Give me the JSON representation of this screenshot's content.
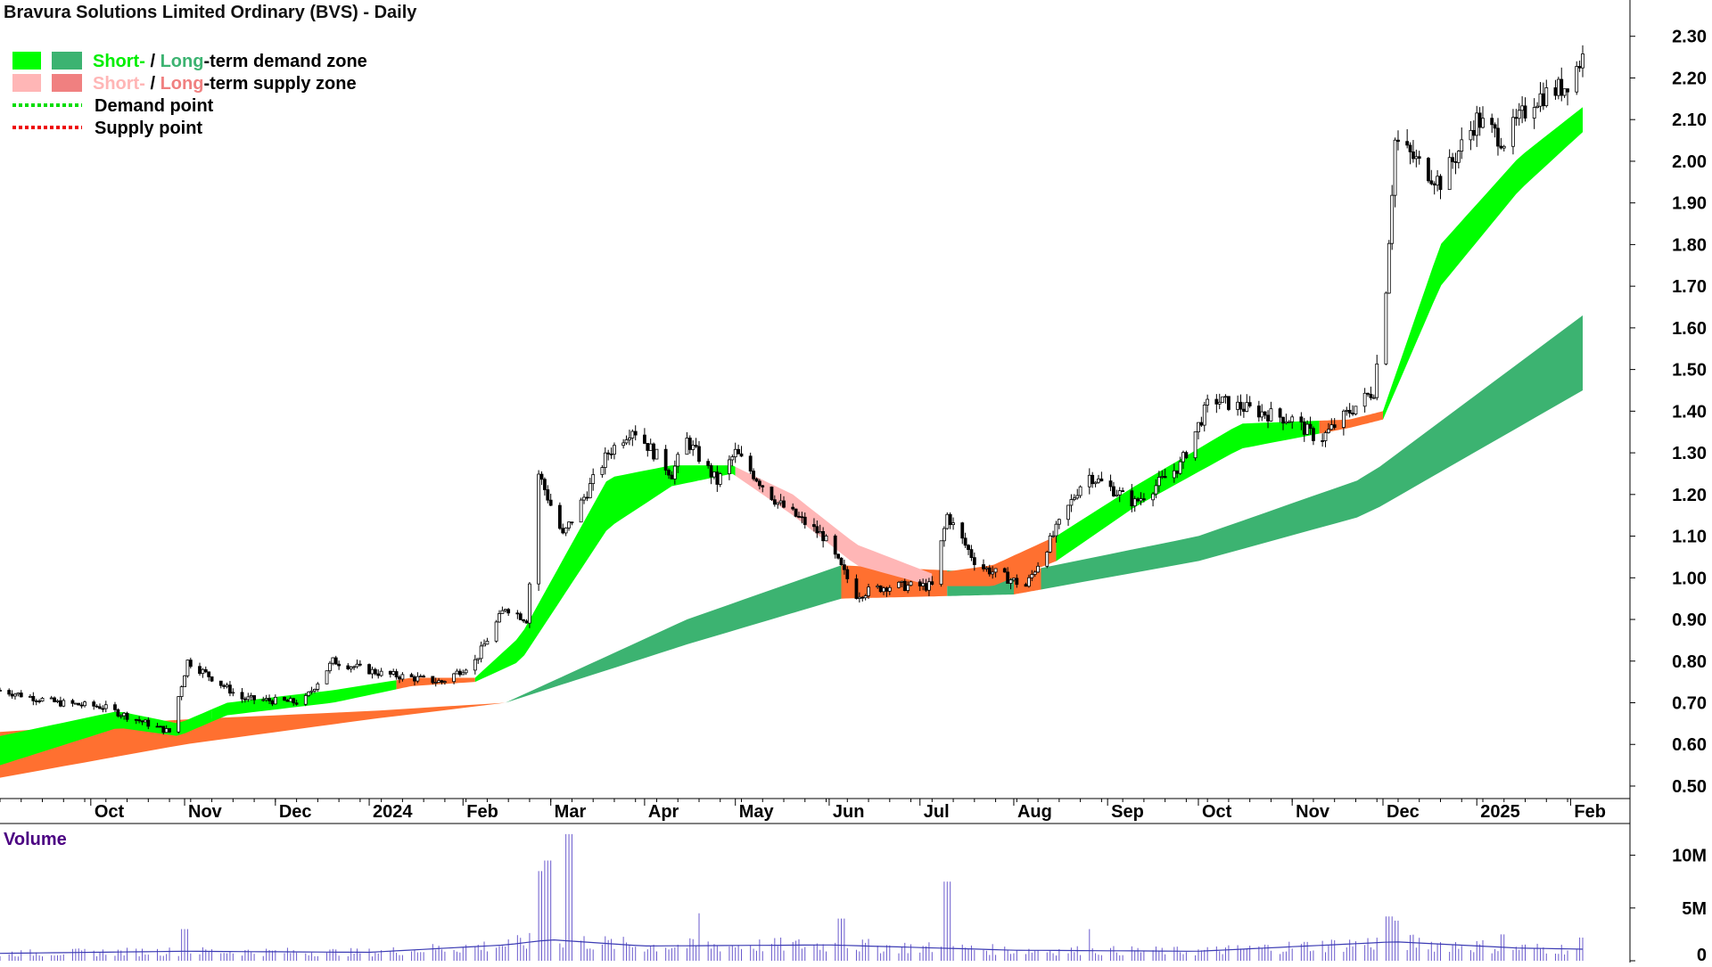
{
  "chart_data": [
    {
      "type": "candlestick",
      "title": "Bravura Solutions Limited Ordinary (BVS) - Daily",
      "legend": {
        "placement": "top-left",
        "items": [
          {
            "kind": "zone",
            "parts": [
              {
                "text": "Short-",
                "color": "#00ee00"
              },
              {
                "text": " / ",
                "color": "#000000"
              },
              {
                "text": "Long",
                "color": "#3cb371"
              },
              {
                "text": "-term demand zone",
                "color": "#000000"
              }
            ],
            "swatches": [
              "#00ff00",
              "#3cb371"
            ]
          },
          {
            "kind": "zone",
            "parts": [
              {
                "text": "Short-",
                "color": "#ffb6b6"
              },
              {
                "text": " / ",
                "color": "#000000"
              },
              {
                "text": "Long",
                "color": "#f08080"
              },
              {
                "text": "-term supply zone",
                "color": "#000000"
              }
            ],
            "swatches": [
              "#ffb6b6",
              "#f08080"
            ]
          },
          {
            "kind": "point",
            "text": "Demand point",
            "color": "#00dd00"
          },
          {
            "kind": "point",
            "text": "Supply point",
            "color": "#ee0000"
          }
        ]
      },
      "y_axis": {
        "side": "right",
        "ticks": [
          "2.30",
          "2.20",
          "2.10",
          "2.00",
          "1.90",
          "1.80",
          "1.70",
          "1.60",
          "1.50",
          "1.40",
          "1.30",
          "1.20",
          "1.10",
          "1.00",
          "0.90",
          "0.80",
          "0.70",
          "0.60",
          "0.50"
        ],
        "ylim": [
          0.47,
          2.37
        ]
      },
      "x_axis": {
        "ticks": [
          "Oct",
          "Nov",
          "Dec",
          "2024",
          "Feb",
          "Mar",
          "Apr",
          "May",
          "Jun",
          "Jul",
          "Aug",
          "Sep",
          "Oct",
          "Nov",
          "Dec",
          "2025",
          "Feb"
        ]
      },
      "price_path": [
        {
          "date": "2023-09-01",
          "close": 0.73
        },
        {
          "date": "2023-09-20",
          "close": 0.7
        },
        {
          "date": "2023-10-05",
          "close": 0.69
        },
        {
          "date": "2023-10-27",
          "close": 0.63
        },
        {
          "date": "2023-11-02",
          "close": 0.8
        },
        {
          "date": "2023-11-20",
          "close": 0.71
        },
        {
          "date": "2023-12-10",
          "close": 0.7
        },
        {
          "date": "2023-12-20",
          "close": 0.8
        },
        {
          "date": "2024-01-05",
          "close": 0.77
        },
        {
          "date": "2024-01-25",
          "close": 0.75
        },
        {
          "date": "2024-02-05",
          "close": 0.8
        },
        {
          "date": "2024-02-15",
          "close": 0.93
        },
        {
          "date": "2024-02-22",
          "close": 0.9
        },
        {
          "date": "2024-02-26",
          "close": 1.25
        },
        {
          "date": "2024-03-05",
          "close": 1.1
        },
        {
          "date": "2024-03-20",
          "close": 1.3
        },
        {
          "date": "2024-03-28",
          "close": 1.36
        },
        {
          "date": "2024-04-10",
          "close": 1.25
        },
        {
          "date": "2024-04-15",
          "close": 1.33
        },
        {
          "date": "2024-04-25",
          "close": 1.23
        },
        {
          "date": "2024-05-01",
          "close": 1.3
        },
        {
          "date": "2024-05-15",
          "close": 1.18
        },
        {
          "date": "2024-05-30",
          "close": 1.1
        },
        {
          "date": "2024-06-10",
          "close": 0.96
        },
        {
          "date": "2024-06-20",
          "close": 0.98
        },
        {
          "date": "2024-07-05",
          "close": 0.98
        },
        {
          "date": "2024-07-10",
          "close": 1.15
        },
        {
          "date": "2024-07-20",
          "close": 1.03
        },
        {
          "date": "2024-08-05",
          "close": 0.98
        },
        {
          "date": "2024-08-25",
          "close": 1.25
        },
        {
          "date": "2024-09-10",
          "close": 1.18
        },
        {
          "date": "2024-09-25",
          "close": 1.27
        },
        {
          "date": "2024-10-05",
          "close": 1.43
        },
        {
          "date": "2024-10-20",
          "close": 1.4
        },
        {
          "date": "2024-11-01",
          "close": 1.38
        },
        {
          "date": "2024-11-10",
          "close": 1.33
        },
        {
          "date": "2024-11-20",
          "close": 1.4
        },
        {
          "date": "2024-11-28",
          "close": 1.45
        },
        {
          "date": "2024-12-02",
          "close": 1.7
        },
        {
          "date": "2024-12-05",
          "close": 2.05
        },
        {
          "date": "2024-12-15",
          "close": 1.98
        },
        {
          "date": "2024-12-20",
          "close": 1.95
        },
        {
          "date": "2025-01-01",
          "close": 2.1
        },
        {
          "date": "2025-01-10",
          "close": 2.05
        },
        {
          "date": "2025-01-20",
          "close": 2.15
        },
        {
          "date": "2025-01-30",
          "close": 2.18
        },
        {
          "date": "2025-02-05",
          "close": 2.25
        }
      ],
      "zones": {
        "short_term": [
          {
            "date": "2023-09-01",
            "upper": 0.62,
            "lower": 0.55
          },
          {
            "date": "2023-10-10",
            "upper": 0.68,
            "lower": 0.64
          },
          {
            "date": "2023-10-30",
            "upper": 0.65,
            "lower": 0.62
          },
          {
            "date": "2023-11-15",
            "upper": 0.7,
            "lower": 0.67
          },
          {
            "date": "2023-12-20",
            "upper": 0.73,
            "lower": 0.7
          },
          {
            "date": "2024-01-15",
            "upper": 0.76,
            "lower": 0.74
          },
          {
            "date": "2024-02-05",
            "upper": 0.76,
            "lower": 0.75
          },
          {
            "date": "2024-02-20",
            "upper": 0.86,
            "lower": 0.8
          },
          {
            "date": "2024-03-20",
            "upper": 1.24,
            "lower": 1.12
          },
          {
            "date": "2024-04-10",
            "upper": 1.27,
            "lower": 1.22
          },
          {
            "date": "2024-04-30",
            "upper": 1.27,
            "lower": 1.25
          },
          {
            "date": "2024-05-20",
            "upper": 1.2,
            "lower": 1.15
          },
          {
            "date": "2024-06-10",
            "upper": 1.08,
            "lower": 1.03
          },
          {
            "date": "2024-07-05",
            "upper": 1.01,
            "lower": 0.98
          },
          {
            "date": "2024-07-25",
            "upper": 1.03,
            "lower": 0.98
          },
          {
            "date": "2024-08-15",
            "upper": 1.1,
            "lower": 1.04
          },
          {
            "date": "2024-09-10",
            "upper": 1.22,
            "lower": 1.17
          },
          {
            "date": "2024-10-15",
            "upper": 1.37,
            "lower": 1.31
          },
          {
            "date": "2024-11-20",
            "upper": 1.38,
            "lower": 1.36
          },
          {
            "date": "2024-12-01",
            "upper": 1.4,
            "lower": 1.38
          },
          {
            "date": "2024-12-20",
            "upper": 1.8,
            "lower": 1.7
          },
          {
            "date": "2025-01-15",
            "upper": 2.01,
            "lower": 1.93
          },
          {
            "date": "2025-02-05",
            "upper": 2.13,
            "lower": 2.07
          }
        ],
        "long_term": [
          {
            "date": "2023-09-01",
            "upper": 0.63,
            "lower": 0.52
          },
          {
            "date": "2023-11-01",
            "upper": 0.66,
            "lower": 0.6
          },
          {
            "date": "2024-01-01",
            "upper": 0.68,
            "lower": 0.66
          },
          {
            "date": "2024-02-15",
            "upper": 0.7,
            "lower": 0.7
          },
          {
            "date": "2024-04-15",
            "upper": 0.9,
            "lower": 0.84
          },
          {
            "date": "2024-06-05",
            "upper": 1.03,
            "lower": 0.95
          },
          {
            "date": "2024-08-01",
            "upper": 1.01,
            "lower": 0.96
          },
          {
            "date": "2024-10-01",
            "upper": 1.1,
            "lower": 1.04
          },
          {
            "date": "2024-11-25",
            "upper": 1.24,
            "lower": 1.15
          },
          {
            "date": "2025-02-05",
            "upper": 1.63,
            "lower": 1.45
          }
        ],
        "segments": [
          {
            "zone": "long_term",
            "from": "2023-09-01",
            "to": "2024-02-15",
            "kind": "supply"
          },
          {
            "zone": "long_term",
            "from": "2024-02-15",
            "to": "2024-06-05",
            "kind": "demand"
          },
          {
            "zone": "long_term",
            "from": "2024-06-05",
            "to": "2024-07-10",
            "kind": "supply"
          },
          {
            "zone": "long_term",
            "from": "2024-07-10",
            "to": "2024-08-01",
            "kind": "demand"
          },
          {
            "zone": "long_term",
            "from": "2024-08-01",
            "to": "2024-08-10",
            "kind": "supply"
          },
          {
            "zone": "long_term",
            "from": "2024-08-10",
            "to": "2025-02-05",
            "kind": "demand"
          },
          {
            "zone": "short_term",
            "from": "2023-09-01",
            "to": "2023-11-10",
            "kind": "demand"
          },
          {
            "zone": "short_term",
            "from": "2023-11-10",
            "to": "2024-01-10",
            "kind": "demand"
          },
          {
            "zone": "short_term",
            "from": "2024-01-10",
            "to": "2024-02-05",
            "kind": "supply"
          },
          {
            "zone": "short_term",
            "from": "2024-02-05",
            "to": "2024-04-10",
            "kind": "demand"
          },
          {
            "zone": "short_term",
            "from": "2024-04-10",
            "to": "2024-05-01",
            "kind": "demand"
          },
          {
            "zone": "short_term",
            "from": "2024-05-01",
            "to": "2024-07-05",
            "kind": "supply"
          },
          {
            "zone": "short_term",
            "from": "2024-07-05",
            "to": "2024-08-15",
            "kind": "supply"
          },
          {
            "zone": "short_term",
            "from": "2024-08-15",
            "to": "2024-11-10",
            "kind": "demand"
          },
          {
            "zone": "short_term",
            "from": "2024-11-10",
            "to": "2024-12-01",
            "kind": "supply"
          },
          {
            "zone": "short_term",
            "from": "2024-12-01",
            "to": "2025-02-05",
            "kind": "demand"
          }
        ]
      }
    },
    {
      "type": "bar",
      "title": "Volume",
      "y_axis": {
        "side": "right",
        "ticks": [
          "10M",
          "5M",
          "0"
        ],
        "ylim": [
          0,
          12500000
        ]
      },
      "volume_profile": [
        {
          "date": "2023-09-01",
          "volume": 700000
        },
        {
          "date": "2023-11-01",
          "volume": 900000
        },
        {
          "date": "2024-01-01",
          "volume": 800000
        },
        {
          "date": "2024-02-15",
          "volume": 1500000
        },
        {
          "date": "2024-03-01",
          "volume": 2000000
        },
        {
          "date": "2024-04-01",
          "volume": 1400000
        },
        {
          "date": "2024-06-01",
          "volume": 1500000
        },
        {
          "date": "2024-08-01",
          "volume": 1000000
        },
        {
          "date": "2024-10-01",
          "volume": 900000
        },
        {
          "date": "2024-12-05",
          "volume": 1800000
        },
        {
          "date": "2025-01-15",
          "volume": 1200000
        },
        {
          "date": "2025-02-05",
          "volume": 1100000
        }
      ],
      "spikes": [
        {
          "date": "2023-11-01",
          "volume": 3000000
        },
        {
          "date": "2024-02-26",
          "volume": 8500000
        },
        {
          "date": "2024-02-29",
          "volume": 9500000
        },
        {
          "date": "2024-03-07",
          "volume": 12000000
        },
        {
          "date": "2024-04-20",
          "volume": 4500000
        },
        {
          "date": "2024-06-05",
          "volume": 4000000
        },
        {
          "date": "2024-07-10",
          "volume": 7500000
        },
        {
          "date": "2024-08-25",
          "volume": 3000000
        },
        {
          "date": "2024-12-03",
          "volume": 4200000
        },
        {
          "date": "2024-12-06",
          "volume": 3800000
        },
        {
          "date": "2025-01-10",
          "volume": 2500000
        },
        {
          "date": "2025-02-05",
          "volume": 2200000
        }
      ]
    }
  ]
}
